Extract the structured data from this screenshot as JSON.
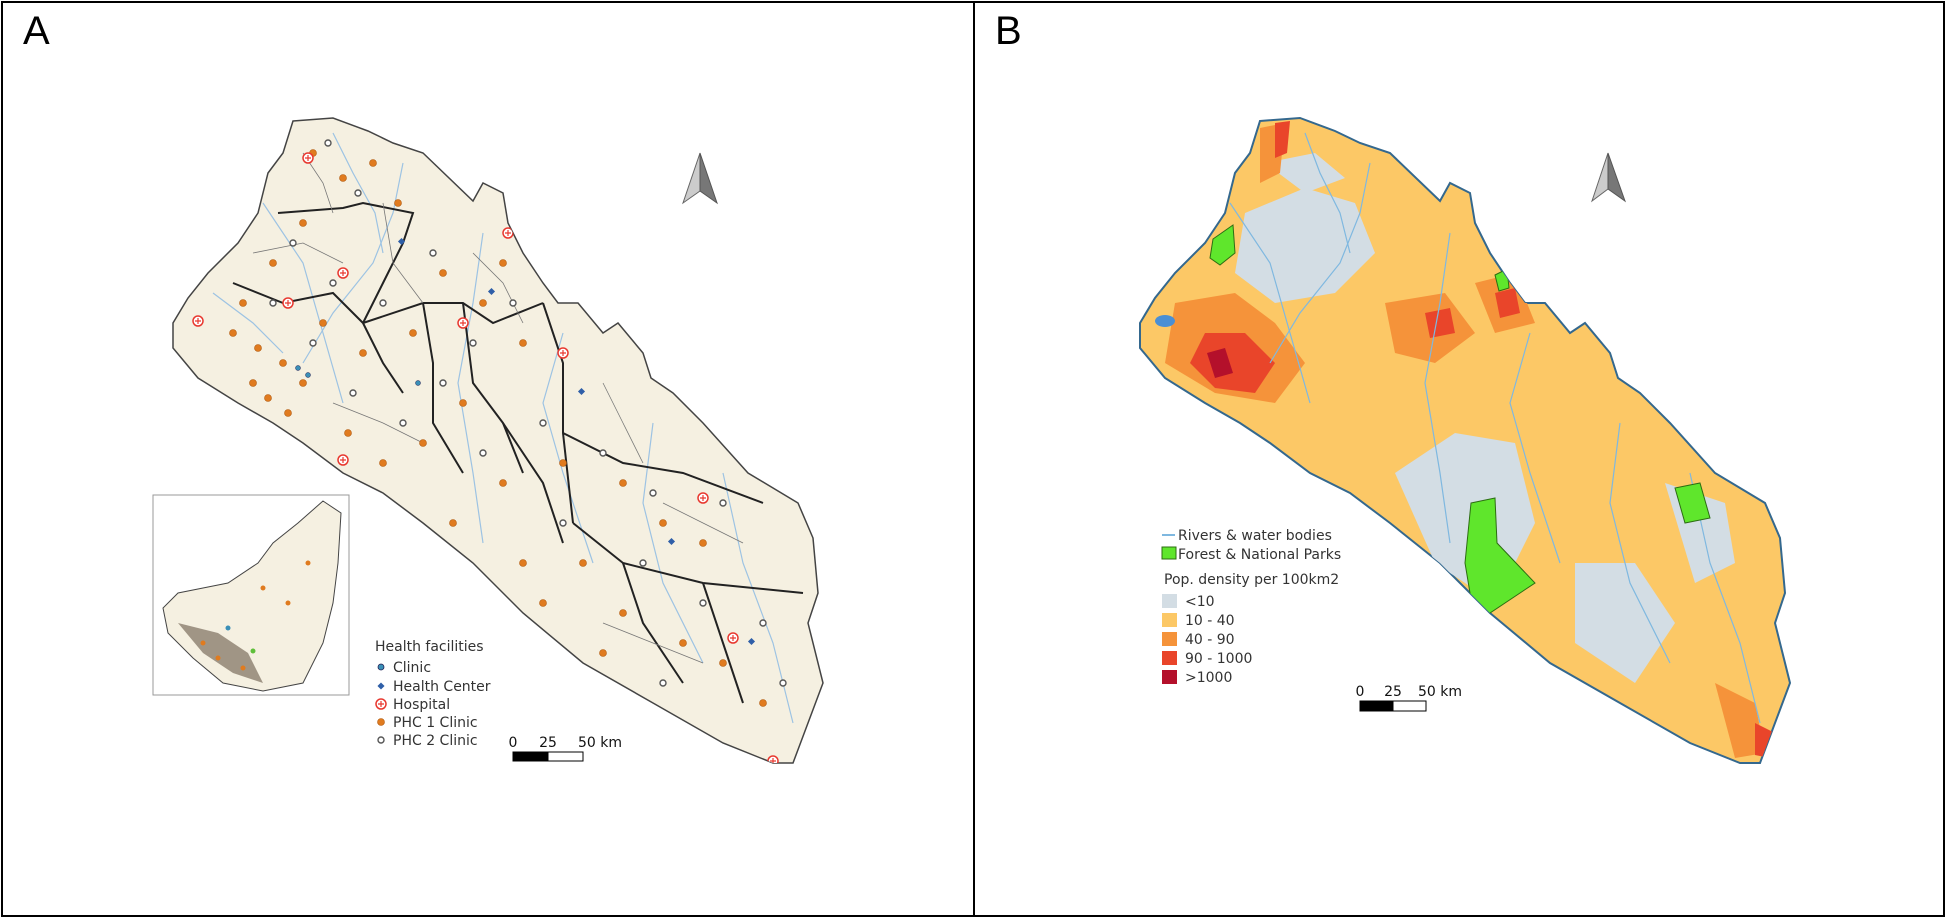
{
  "panels": {
    "a": {
      "letter": "A",
      "legend": {
        "title": "Health facilities",
        "items": [
          {
            "label": "Clinic",
            "icon": "clinic-icon",
            "color": "#3a8fb7"
          },
          {
            "label": "Health Center",
            "icon": "health-center-icon",
            "color": "#2f5fa8"
          },
          {
            "label": "Hospital",
            "icon": "hospital-icon",
            "color": "#e8382f"
          },
          {
            "label": "PHC 1 Clinic",
            "icon": "phc1-clinic-icon",
            "color": "#e07b1f"
          },
          {
            "label": "PHC 2 Clinic",
            "icon": "phc2-clinic-icon",
            "color": "#555555"
          }
        ]
      },
      "scale": {
        "ticks": [
          "0",
          "25",
          "50 km"
        ]
      }
    },
    "b": {
      "letter": "B",
      "legend": {
        "layers": [
          {
            "label": "Rivers & water bodies",
            "icon": "river-line-icon",
            "color": "#7fb8e0"
          },
          {
            "label": "Forest & National Parks",
            "icon": "forest-swatch-icon",
            "color": "#5fe62c"
          }
        ],
        "density_title": "Pop. density per 100km2",
        "classes": [
          {
            "label": "<10",
            "color": "#d3dde4"
          },
          {
            "label": "10 - 40",
            "color": "#fcc866"
          },
          {
            "label": "40 - 90",
            "color": "#f5933a"
          },
          {
            "label": "90 - 1000",
            "color": "#e9452a"
          },
          {
            "label": ">1000",
            "color": "#b4102b"
          }
        ]
      },
      "scale": {
        "ticks": [
          "0",
          "25",
          "50 km"
        ]
      }
    }
  },
  "colors": {
    "land": "#f5f0e1",
    "border": "#222222",
    "river": "#9dc3e3",
    "north_arrow": "#999999"
  }
}
